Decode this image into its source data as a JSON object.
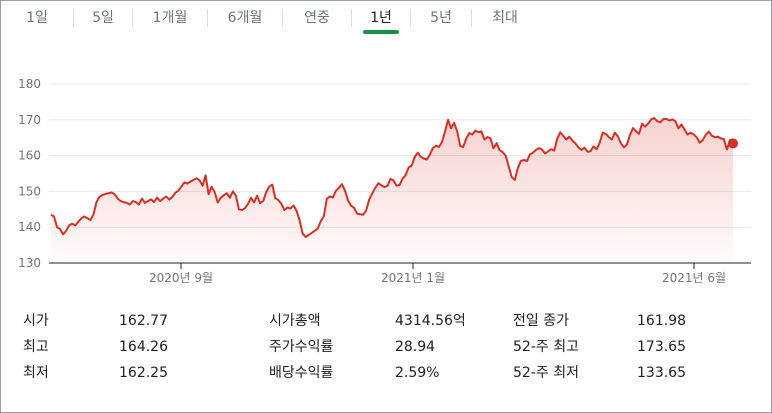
{
  "tabs": [
    {
      "label": "1일",
      "active": false
    },
    {
      "label": "5일",
      "active": false
    },
    {
      "label": "1개월",
      "active": false
    },
    {
      "label": "6개월",
      "active": false
    },
    {
      "label": "연중",
      "active": false
    },
    {
      "label": "1년",
      "active": true
    },
    {
      "label": "5년",
      "active": false
    },
    {
      "label": "최대",
      "active": false
    }
  ],
  "colors": {
    "line": "#d93025",
    "active_tab": "#1e8e3e"
  },
  "chart_data": {
    "type": "area",
    "ylim": [
      130,
      180
    ],
    "yticks": [
      130,
      140,
      150,
      160,
      170,
      180
    ],
    "xtick_labels": [
      "2020년 9월",
      "2021년 1월",
      "2021년 6월"
    ],
    "grid": true,
    "series": [
      {
        "values": [
          143.5,
          143,
          140,
          139.5,
          138,
          139,
          140.5,
          141,
          140.5,
          141.5,
          142.5,
          143,
          142.5,
          142,
          143.5,
          147,
          148.5,
          149,
          149.3,
          149.5,
          149.7,
          149.2,
          148,
          147.3,
          147,
          146.8,
          146.3,
          147.3,
          147,
          146.3,
          148,
          146.8,
          147.3,
          147.8,
          147,
          148.3,
          147.3,
          148,
          148.6,
          147.7,
          148.4,
          149.6,
          150.2,
          151.3,
          152.5,
          152.2,
          152.7,
          153.2,
          153.7,
          153.1,
          151.6,
          154.5,
          149.2,
          151.3,
          149.8,
          146.9,
          148.2,
          148.9,
          149.5,
          148.2,
          150,
          148.8,
          145,
          144.8,
          145.3,
          146.5,
          148.2,
          146.9,
          148.8,
          146.7,
          147.3,
          149.8,
          151.3,
          151.9,
          148.1,
          147.6,
          146.5,
          144.8,
          145.5,
          145.2,
          146.1,
          144.6,
          142,
          138.2,
          137.3,
          137.8,
          138.4,
          139,
          139.6,
          141.7,
          143,
          147.9,
          148.6,
          148.3,
          150.2,
          151,
          152,
          150.2,
          147.5,
          146,
          145.4,
          143.8,
          143.6,
          143.5,
          144.7,
          147.8,
          149.5,
          151,
          152.3,
          151.7,
          151.2,
          151.6,
          153.5,
          153.1,
          151.6,
          151.8,
          153.6,
          154.5,
          156.7,
          157.2,
          159.6,
          160.8,
          159.7,
          159.2,
          158.9,
          160.3,
          162.1,
          162.8,
          162.4,
          163.8,
          166.7,
          170,
          167.6,
          169.2,
          166.7,
          162.7,
          162.4,
          164.8,
          166.3,
          165.9,
          167,
          166.5,
          166.8,
          164.5,
          165.2,
          164.8,
          162,
          163.5,
          161.5,
          161,
          160,
          157,
          154,
          153.2,
          156.5,
          158.5,
          158.8,
          158.5,
          160.3,
          160.8,
          161.6,
          162.1,
          161.7,
          160.6,
          161.2,
          161.8,
          161.4,
          164.7,
          166.5,
          165.5,
          164.5,
          165.3,
          164.2,
          163.4,
          162.3,
          161.6,
          162.2,
          161.1,
          161.2,
          162.6,
          161.8,
          163.5,
          166.4,
          166.1,
          165.2,
          164.5,
          166.4,
          165.4,
          163.5,
          162.3,
          163.1,
          165.7,
          167.7,
          166.8,
          166.1,
          168.9,
          168.1,
          168.9,
          170.1,
          170.5,
          169.6,
          169.3,
          170.2,
          170.3,
          169.8,
          170.1,
          169.6,
          167.6,
          168.7,
          167.3,
          165.9,
          166.4,
          165.9,
          165.1,
          163.6,
          164.3,
          165.8,
          166.7,
          165.6,
          165.1,
          165.3,
          164.8,
          164.6,
          161.7,
          164.3,
          163.4
        ]
      }
    ]
  },
  "stats": [
    {
      "label": "시가",
      "value": "162.77"
    },
    {
      "label": "최고",
      "value": "164.26"
    },
    {
      "label": "최저",
      "value": "162.25"
    },
    {
      "label": "시가총액",
      "value": "4314.56억"
    },
    {
      "label": "주가수익률",
      "value": "28.94"
    },
    {
      "label": "배당수익률",
      "value": "2.59%"
    },
    {
      "label": "전일 종가",
      "value": "161.98"
    },
    {
      "label": "52-주 최고",
      "value": "173.65"
    },
    {
      "label": "52-주 최저",
      "value": "133.65"
    }
  ]
}
